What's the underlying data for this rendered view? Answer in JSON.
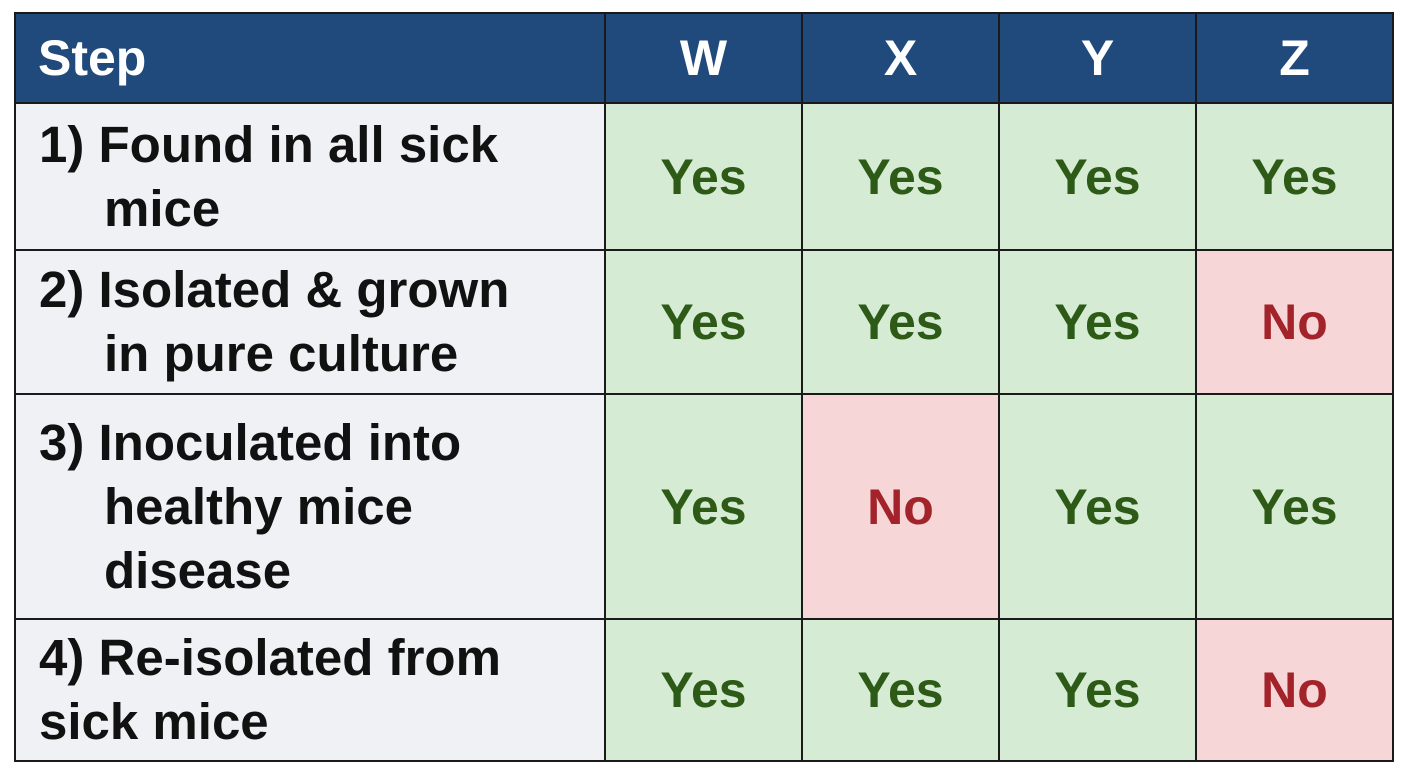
{
  "table": {
    "header": [
      "Step",
      "W",
      "X",
      "Y",
      "Z"
    ],
    "rows": [
      [
        "1) Found in all sick mice",
        "Yes",
        "Yes",
        "Yes",
        "Yes"
      ],
      [
        "2) Isolated & grown in pure culture",
        "Yes",
        "Yes",
        "Yes",
        "No"
      ],
      [
        "3) Inoculated into healthy mice disease",
        "Yes",
        "No",
        "Yes",
        "Yes"
      ],
      [
        "4) Re-isolated from sick mice",
        "Yes",
        "Yes",
        "Yes",
        "No"
      ]
    ]
  }
}
